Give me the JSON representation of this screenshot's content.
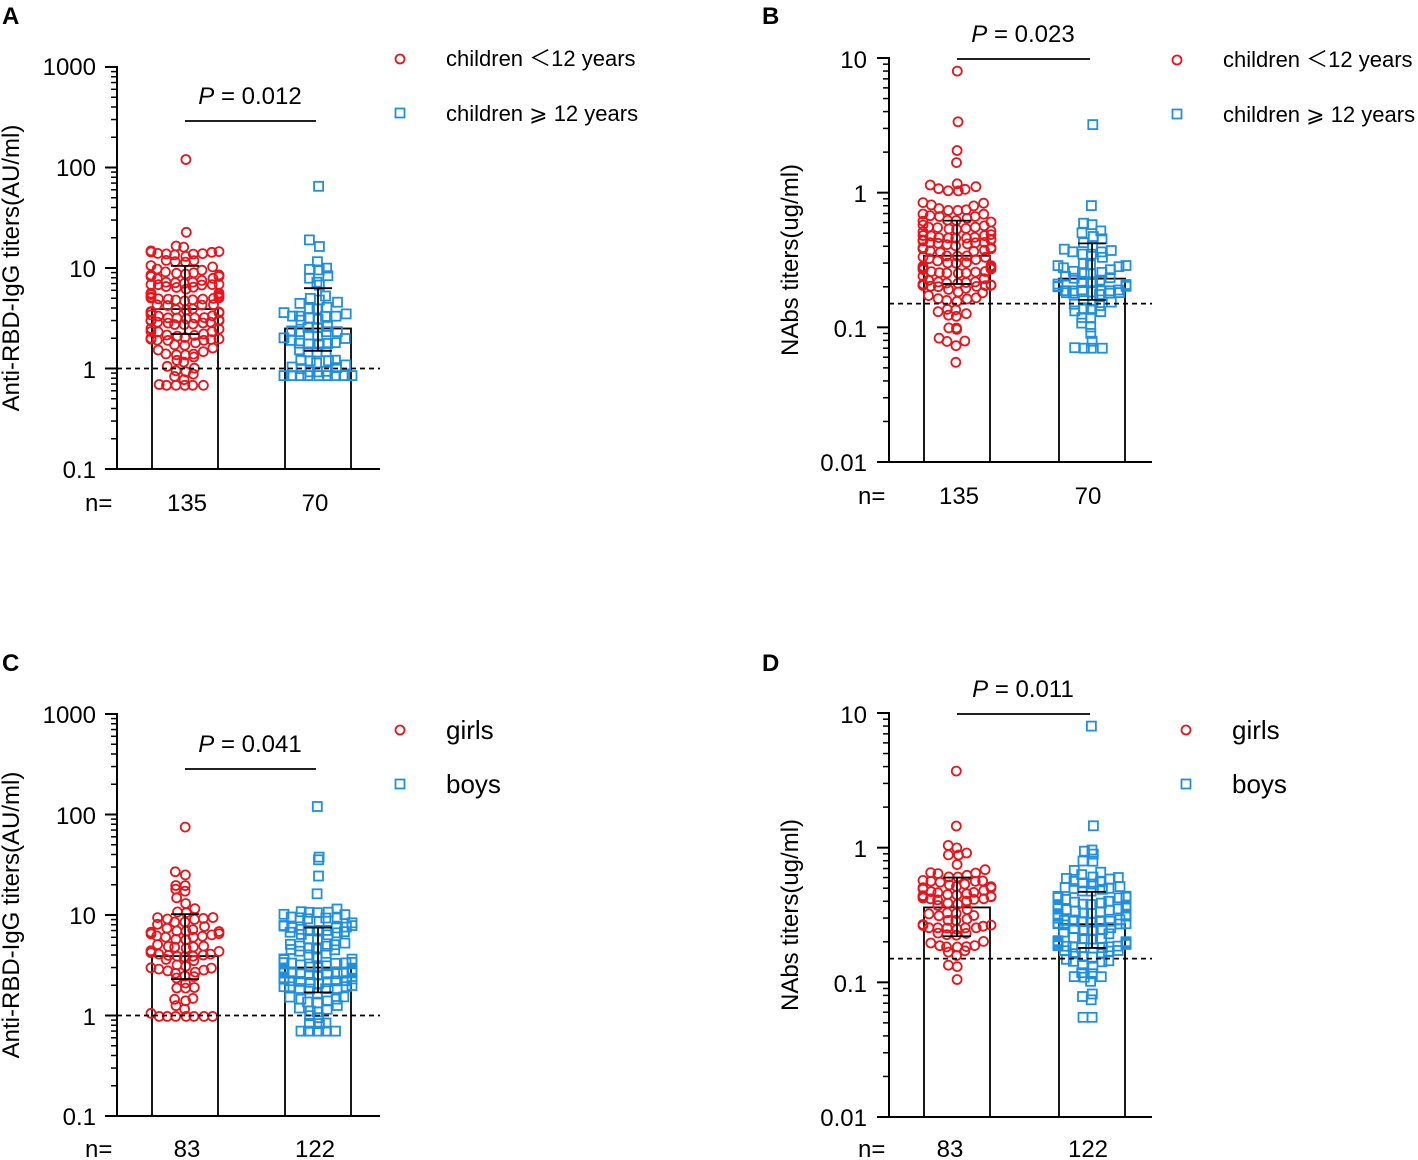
{
  "colors": {
    "red": "#e8141b",
    "blue": "#1f8fe0",
    "black": "#000000"
  },
  "chart_data": [
    {
      "panel": "A",
      "type": "scatter",
      "ylabel": "Anti-RBD-IgG titers(AU/ml)",
      "yscale": "log",
      "ylim": [
        0.1,
        1000
      ],
      "yticks": [
        "0.1",
        "1",
        "10",
        "100",
        "1000"
      ],
      "ytick_values": [
        0.1,
        1,
        10,
        100,
        1000
      ],
      "threshold": 1,
      "p_label": "P",
      "p_text": " = 0.012",
      "n_label": "n=",
      "legend": [
        "children ＜12 years",
        "children ⩾ 12 years"
      ],
      "groups": [
        {
          "name": "children ＜12 years",
          "n": "135",
          "n_points": 135,
          "median": 3.9,
          "err_low": 2.2,
          "err_high": 10.5,
          "marker": "circle",
          "color": "#e8141b",
          "min": 0.68,
          "max": 120
        },
        {
          "name": "children ⩾ 12 years",
          "n": "70",
          "n_points": 70,
          "median": 2.5,
          "err_low": 1.5,
          "err_high": 6.3,
          "marker": "square",
          "color": "#1f8fe0",
          "min": 0.85,
          "max": 65
        }
      ]
    },
    {
      "panel": "B",
      "type": "scatter",
      "ylabel": "NAbs titers(ug/ml)",
      "yscale": "log",
      "ylim": [
        0.01,
        10
      ],
      "yticks": [
        "0.01",
        "0.1",
        "1",
        "10"
      ],
      "ytick_values": [
        0.01,
        0.1,
        1,
        10
      ],
      "threshold": 0.15,
      "p_label": "P",
      "p_text": " = 0.023",
      "n_label": "n=",
      "legend": [
        "children ＜12 years",
        "children ⩾ 12 years"
      ],
      "groups": [
        {
          "name": "children ＜12 years",
          "n": "135",
          "n_points": 135,
          "median": 0.34,
          "err_low": 0.21,
          "err_high": 0.62,
          "marker": "circle",
          "color": "#e8141b",
          "min": 0.055,
          "max": 8.0
        },
        {
          "name": "children ⩾ 12 years",
          "n": "70",
          "n_points": 70,
          "median": 0.23,
          "err_low": 0.16,
          "err_high": 0.42,
          "marker": "square",
          "color": "#1f8fe0",
          "min": 0.07,
          "max": 3.2
        }
      ]
    },
    {
      "panel": "C",
      "type": "scatter",
      "ylabel": "Anti-RBD-IgG titers(AU/ml)",
      "yscale": "log",
      "ylim": [
        0.1,
        1000
      ],
      "yticks": [
        "0.1",
        "1",
        "10",
        "100",
        "1000"
      ],
      "ytick_values": [
        0.1,
        1,
        10,
        100,
        1000
      ],
      "threshold": 1,
      "p_label": "P",
      "p_text": " = 0.041",
      "n_label": "n=",
      "legend": [
        "girls",
        "boys"
      ],
      "groups": [
        {
          "name": "girls",
          "n": "83",
          "n_points": 83,
          "median": 3.9,
          "err_low": 2.3,
          "err_high": 10.2,
          "marker": "circle",
          "color": "#e8141b",
          "min": 0.98,
          "max": 75
        },
        {
          "name": "boys",
          "n": "122",
          "n_points": 122,
          "median": 3.0,
          "err_low": 1.7,
          "err_high": 7.5,
          "marker": "square",
          "color": "#1f8fe0",
          "min": 0.7,
          "max": 120
        }
      ]
    },
    {
      "panel": "D",
      "type": "scatter",
      "ylabel": "NAbs titers(ug/ml)",
      "yscale": "log",
      "ylim": [
        0.01,
        10
      ],
      "yticks": [
        "0.01",
        "0.1",
        "1",
        "10"
      ],
      "ytick_values": [
        0.01,
        0.1,
        1,
        10
      ],
      "threshold": 0.15,
      "p_label": "P",
      "p_text": " = 0.011",
      "n_label": "n=",
      "legend": [
        "girls",
        "boys"
      ],
      "groups": [
        {
          "name": "girls",
          "n": "83",
          "n_points": 83,
          "median": 0.36,
          "err_low": 0.22,
          "err_high": 0.6,
          "marker": "circle",
          "color": "#e8141b",
          "min": 0.105,
          "max": 3.7
        },
        {
          "name": "boys",
          "n": "122",
          "n_points": 122,
          "median": 0.27,
          "err_low": 0.18,
          "err_high": 0.47,
          "marker": "square",
          "color": "#1f8fe0",
          "min": 0.055,
          "max": 8.0
        }
      ]
    }
  ]
}
